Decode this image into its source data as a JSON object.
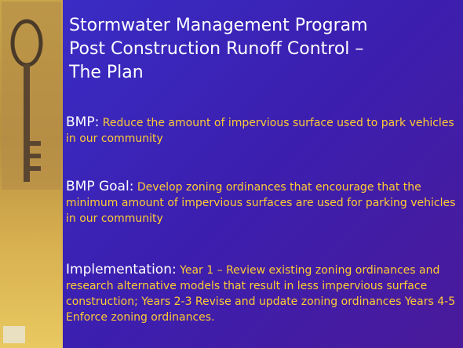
{
  "slide": {
    "title_lines": [
      "Stormwater Management Program",
      "Post Construction Runoff Control –",
      "The Plan"
    ],
    "sections": [
      {
        "label": "BMP:",
        "text": "Reduce the amount of impervious surface used to park vehicles in our community"
      },
      {
        "label": "BMP Goal:",
        "text": "Develop zoning ordinances that encourage that the minimum amount of impervious surfaces are used for parking vehicles in our community"
      },
      {
        "label": "Implementation:",
        "text": "Year 1 – Review existing zoning ordinances and research alternative models that result in less impervious surface construction;  Years 2-3 Revise and update zoning ordinances Years 4-5 Enforce zoning ordinances."
      }
    ]
  }
}
